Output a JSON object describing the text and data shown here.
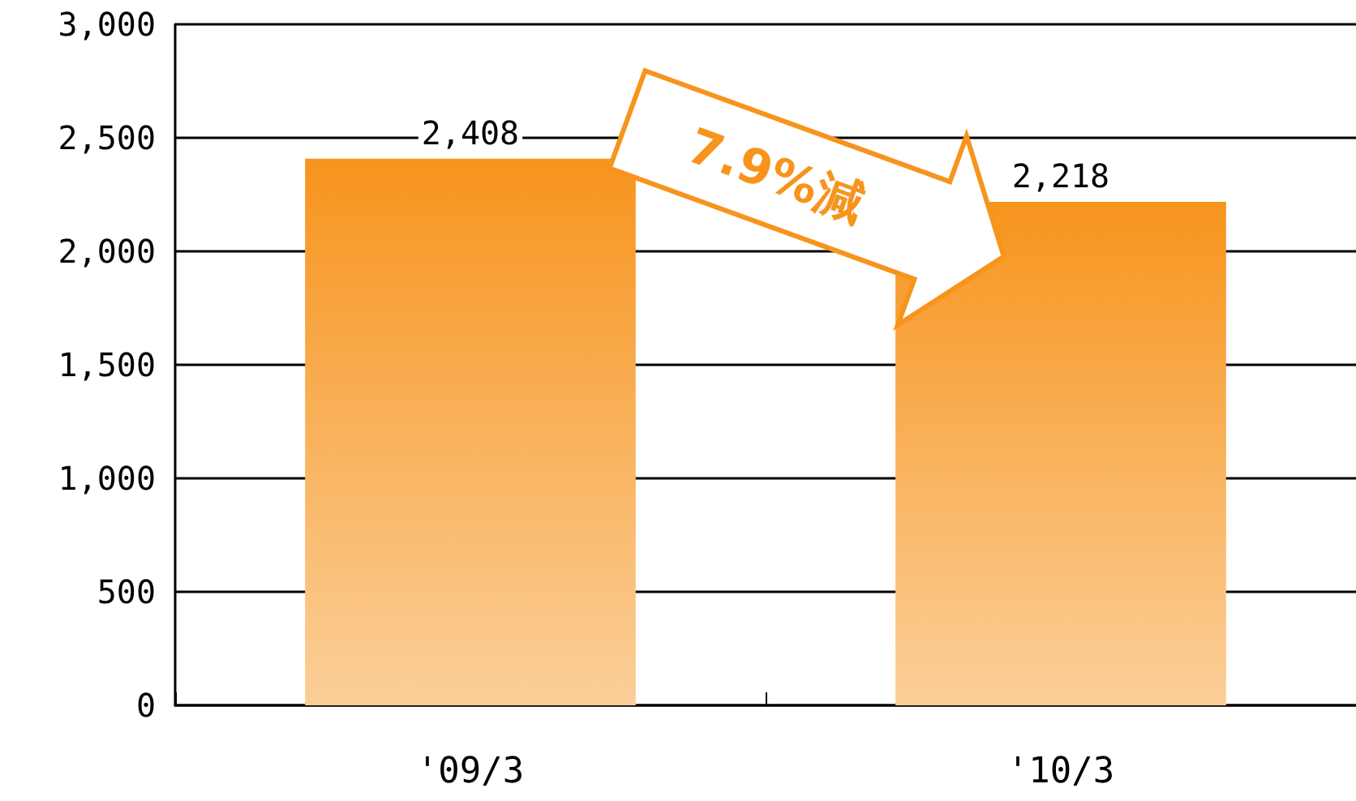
{
  "chart_data": {
    "type": "bar",
    "categories": [
      "'09/3",
      "'10/3"
    ],
    "values": [
      2408,
      2218
    ],
    "value_labels": [
      "2,408",
      "2,218"
    ],
    "color": "#f7941d",
    "ylim": [
      0,
      3000
    ],
    "yticks": [
      {
        "value": 0,
        "label": "0"
      },
      {
        "value": 500,
        "label": "500"
      },
      {
        "value": 1000,
        "label": "1,000"
      },
      {
        "value": 1500,
        "label": "1,500"
      },
      {
        "value": 2000,
        "label": "2,000"
      },
      {
        "value": 2500,
        "label": "2,500"
      },
      {
        "value": 3000,
        "label": "3,000"
      }
    ],
    "grid": "y",
    "annotations": [
      "7.9%減"
    ]
  }
}
